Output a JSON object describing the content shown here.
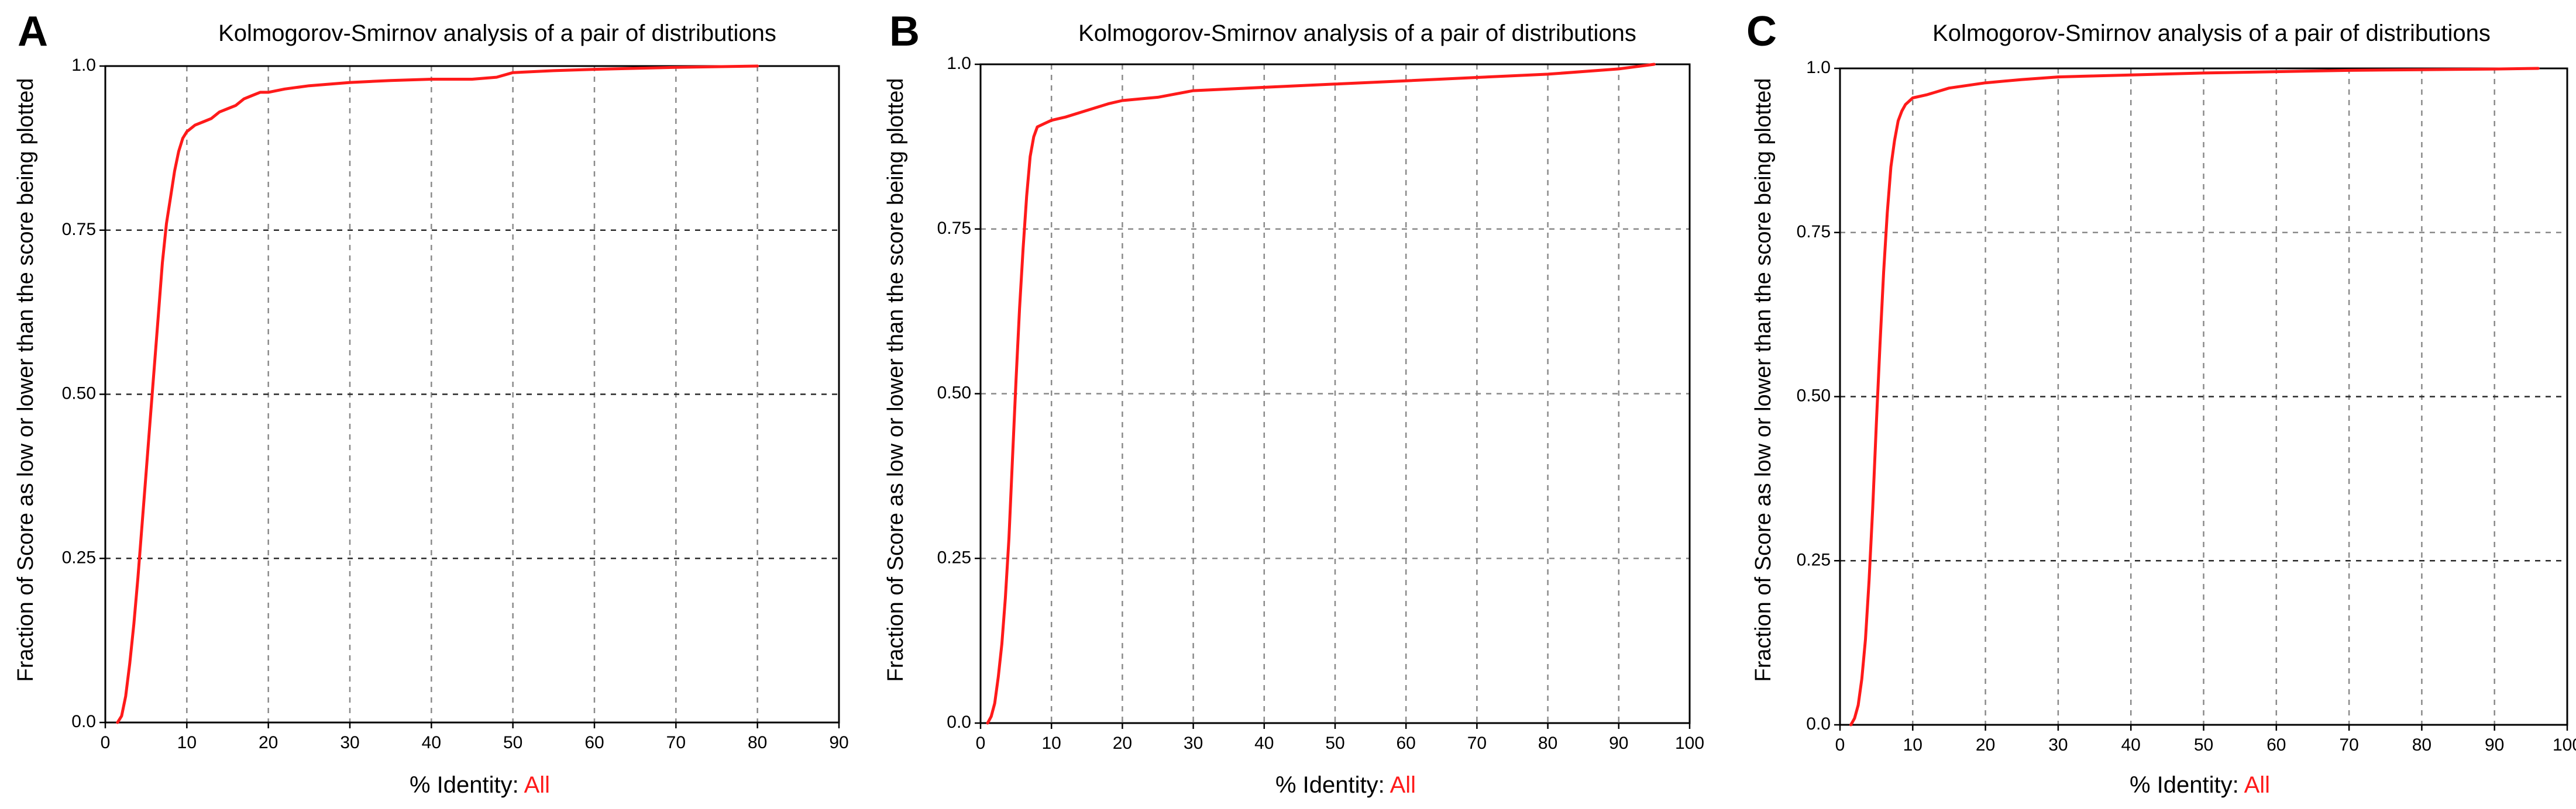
{
  "chart_data": [
    {
      "panel": "A",
      "type": "line",
      "title": "Kolmogorov-Smirnov analysis of a pair of distributions",
      "xlabel": "% Identity: ",
      "xlabel_highlight": "All",
      "ylabel": "Fraction of Score as low or lower than the score being plotted",
      "xlim": [
        0,
        90
      ],
      "ylim": [
        0,
        1
      ],
      "xticks": [
        0,
        10,
        20,
        30,
        40,
        50,
        60,
        70,
        80,
        90
      ],
      "xtick_labels": [
        "0",
        "10",
        "20",
        "30",
        "40",
        "50",
        "60",
        "70",
        "80",
        "90"
      ],
      "yticks": [
        0,
        0.25,
        0.5,
        0.75,
        1.0
      ],
      "ytick_labels": [
        "0.0",
        "0.25",
        "0.50",
        "0.75",
        "1.0"
      ],
      "series": [
        {
          "name": "All",
          "color": "#ff1a1a",
          "x": [
            1.5,
            2,
            2.5,
            3,
            3.5,
            4,
            4.5,
            5,
            5.5,
            6,
            6.5,
            7,
            7.5,
            8,
            8.5,
            9,
            9.5,
            10,
            11,
            12,
            13,
            14,
            15,
            16,
            17,
            18,
            19,
            20,
            22,
            25,
            30,
            35,
            40,
            45,
            48,
            50,
            55,
            60,
            70,
            80
          ],
          "y": [
            0,
            0.01,
            0.04,
            0.09,
            0.15,
            0.22,
            0.3,
            0.38,
            0.46,
            0.54,
            0.62,
            0.7,
            0.76,
            0.8,
            0.84,
            0.87,
            0.89,
            0.9,
            0.91,
            0.915,
            0.92,
            0.93,
            0.935,
            0.94,
            0.95,
            0.955,
            0.96,
            0.96,
            0.965,
            0.97,
            0.975,
            0.978,
            0.98,
            0.98,
            0.983,
            0.99,
            0.993,
            0.995,
            0.998,
            1.0
          ]
        }
      ]
    },
    {
      "panel": "B",
      "type": "line",
      "title": "Kolmogorov-Smirnov analysis of a pair of distributions",
      "xlabel": "% Identity: ",
      "xlabel_highlight": "All",
      "ylabel": "Fraction of Score as low or lower than the score being plotted",
      "xlim": [
        0,
        100
      ],
      "ylim": [
        0,
        1
      ],
      "xticks": [
        0,
        10,
        20,
        30,
        40,
        50,
        60,
        70,
        80,
        90,
        100
      ],
      "xtick_labels": [
        "0",
        "10",
        "20",
        "30",
        "40",
        "50",
        "60",
        "70",
        "80",
        "90",
        "100"
      ],
      "yticks": [
        0,
        0.25,
        0.5,
        0.75,
        1.0
      ],
      "ytick_labels": [
        "0.0",
        "0.25",
        "0.50",
        "0.75",
        "1.0"
      ],
      "series": [
        {
          "name": "All",
          "color": "#ff1a1a",
          "x": [
            1,
            1.5,
            2,
            2.5,
            3,
            3.5,
            4,
            4.5,
            5,
            5.5,
            6,
            6.5,
            7,
            7.5,
            8,
            9,
            10,
            12,
            15,
            18,
            20,
            25,
            30,
            40,
            50,
            60,
            70,
            80,
            90,
            95
          ],
          "y": [
            0,
            0.01,
            0.03,
            0.07,
            0.12,
            0.19,
            0.28,
            0.4,
            0.52,
            0.63,
            0.72,
            0.8,
            0.86,
            0.89,
            0.905,
            0.91,
            0.915,
            0.92,
            0.93,
            0.94,
            0.945,
            0.95,
            0.96,
            0.965,
            0.97,
            0.975,
            0.98,
            0.985,
            0.993,
            1.0
          ]
        }
      ]
    },
    {
      "panel": "C",
      "type": "line",
      "title": "Kolmogorov-Smirnov analysis of a pair of distributions",
      "xlabel": "% Identity: ",
      "xlabel_highlight": "All",
      "ylabel": "Fraction of Score as low or lower than the score being plotted",
      "xlim": [
        0,
        100
      ],
      "ylim": [
        0,
        1
      ],
      "xticks": [
        0,
        10,
        20,
        30,
        40,
        50,
        60,
        70,
        80,
        90,
        100
      ],
      "xtick_labels": [
        "0",
        "10",
        "20",
        "30",
        "40",
        "50",
        "60",
        "70",
        "80",
        "90",
        "100"
      ],
      "yticks": [
        0,
        0.25,
        0.5,
        0.75,
        1.0
      ],
      "ytick_labels": [
        "0.0",
        "0.25",
        "0.50",
        "0.75",
        "1.0"
      ],
      "series": [
        {
          "name": "All",
          "color": "#ff1a1a",
          "x": [
            1.5,
            2,
            2.5,
            3,
            3.5,
            4,
            4.5,
            5,
            5.5,
            6,
            6.5,
            7,
            7.5,
            8,
            8.5,
            9,
            10,
            12,
            15,
            20,
            25,
            30,
            40,
            50,
            60,
            70,
            80,
            90,
            96
          ],
          "y": [
            0,
            0.01,
            0.03,
            0.07,
            0.13,
            0.22,
            0.33,
            0.46,
            0.58,
            0.69,
            0.78,
            0.85,
            0.89,
            0.92,
            0.935,
            0.945,
            0.955,
            0.96,
            0.97,
            0.978,
            0.983,
            0.987,
            0.99,
            0.993,
            0.995,
            0.997,
            0.998,
            0.999,
            1.0
          ]
        }
      ]
    }
  ]
}
